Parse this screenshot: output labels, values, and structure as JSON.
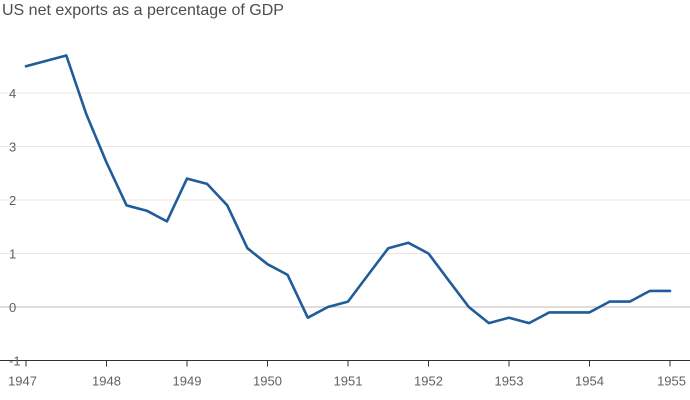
{
  "chart_data": {
    "type": "line",
    "title": "US net exports as a percentage of GDP",
    "xlabel": "",
    "ylabel": "",
    "xlim": [
      1947,
      1955
    ],
    "ylim": [
      -1,
      5
    ],
    "y_ticks": [
      -1,
      0,
      1,
      2,
      3,
      4
    ],
    "x_ticks": [
      1947,
      1948,
      1949,
      1950,
      1951,
      1952,
      1953,
      1954,
      1955
    ],
    "grid": true,
    "legend": "none",
    "colors": {
      "series": "#1f5c99",
      "grid": "#ebe6e0",
      "axis": "#33302e",
      "text": "#66605c"
    },
    "series": [
      {
        "x": [
          1947.0,
          1947.25,
          1947.5,
          1947.75,
          1948.0,
          1948.25,
          1948.5,
          1948.75,
          1949.0,
          1949.25,
          1949.5,
          1949.75,
          1950.0,
          1950.25,
          1950.5,
          1950.75,
          1951.0,
          1951.25,
          1951.5,
          1951.75,
          1952.0,
          1952.25,
          1952.5,
          1952.75,
          1953.0,
          1953.25,
          1953.5,
          1953.75,
          1954.0,
          1954.25,
          1954.5,
          1954.75,
          1955.0
        ],
        "values": [
          4.5,
          4.6,
          4.7,
          3.6,
          2.7,
          1.9,
          1.8,
          1.6,
          2.4,
          2.3,
          1.9,
          1.1,
          0.8,
          0.6,
          -0.2,
          0.0,
          0.1,
          0.6,
          1.1,
          1.2,
          1.0,
          0.5,
          0.0,
          -0.3,
          -0.2,
          -0.3,
          -0.1,
          -0.1,
          -0.1,
          0.1,
          0.1,
          0.3,
          0.3
        ]
      }
    ]
  }
}
